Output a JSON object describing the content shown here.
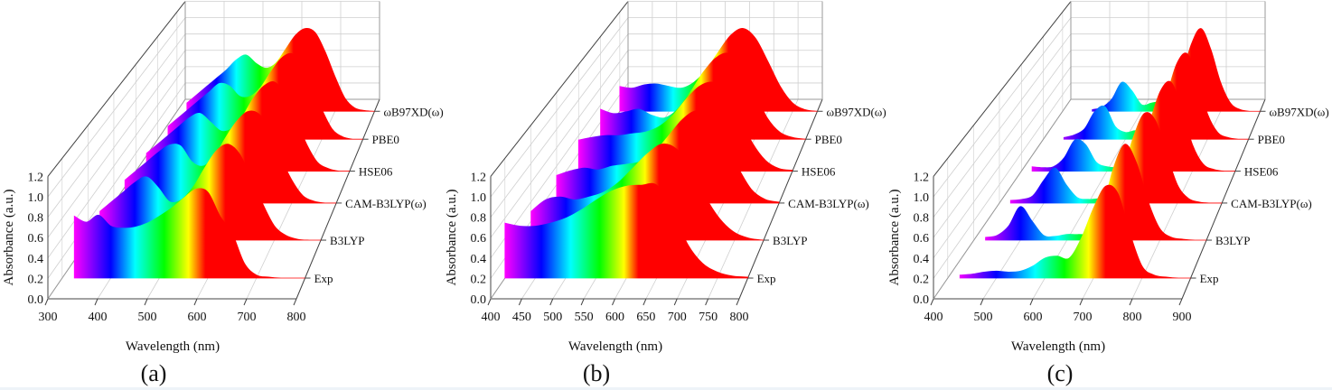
{
  "chart_data": [
    {
      "type": "area",
      "panel_label": "(a)",
      "xlabel": "Wavelength (nm)",
      "ylabel": "Absorbance (a.u.)",
      "xlim": [
        300,
        800
      ],
      "ylim": [
        0,
        1.2
      ],
      "xticks": [
        300,
        400,
        500,
        600,
        700,
        800
      ],
      "yticks": [
        "0.0",
        "0.2",
        "0.4",
        "0.6",
        "0.8",
        "1.0",
        "1.2"
      ],
      "grid": true,
      "colormap": [
        [
          "#ff00ff",
          0.05
        ],
        [
          "#0000ff",
          0.2
        ],
        [
          "#00ffff",
          0.3
        ],
        [
          "#00ff00",
          0.42
        ],
        [
          "#ffff00",
          0.52
        ],
        [
          "#ff0000",
          0.59
        ]
      ],
      "x": [
        325,
        350,
        375,
        400,
        425,
        450,
        475,
        500,
        525,
        550,
        575,
        600,
        625,
        650,
        675,
        700,
        725,
        750,
        775,
        800
      ],
      "series": [
        {
          "name": "Exp",
          "values": [
            0.62,
            0.56,
            0.63,
            0.52,
            0.5,
            0.51,
            0.55,
            0.62,
            0.7,
            0.8,
            0.89,
            0.86,
            0.62,
            0.45,
            0.15,
            0.03,
            0.01,
            0,
            0,
            0
          ]
        },
        {
          "name": "B3LYP",
          "values": [
            0.3,
            0.4,
            0.5,
            0.6,
            0.66,
            0.55,
            0.4,
            0.42,
            0.55,
            0.75,
            0.93,
            1.0,
            0.9,
            0.65,
            0.38,
            0.15,
            0.05,
            0.01,
            0,
            0
          ]
        },
        {
          "name": "CAM-B3LYP(ω)",
          "values": [
            0.25,
            0.35,
            0.45,
            0.55,
            0.63,
            0.62,
            0.45,
            0.4,
            0.5,
            0.7,
            0.88,
            0.99,
            0.97,
            0.8,
            0.5,
            0.25,
            0.08,
            0.02,
            0,
            0
          ]
        },
        {
          "name": "HSE06",
          "values": [
            0.2,
            0.3,
            0.4,
            0.5,
            0.6,
            0.65,
            0.55,
            0.45,
            0.48,
            0.62,
            0.82,
            0.96,
            1.0,
            0.85,
            0.58,
            0.3,
            0.1,
            0.03,
            0,
            0
          ]
        },
        {
          "name": "PBE0",
          "values": [
            0.15,
            0.25,
            0.35,
            0.45,
            0.55,
            0.65,
            0.62,
            0.5,
            0.5,
            0.6,
            0.78,
            0.94,
            1.0,
            0.9,
            0.65,
            0.35,
            0.12,
            0.03,
            0,
            0
          ]
        },
        {
          "name": "ωB97XD(ω)",
          "values": [
            0.1,
            0.2,
            0.3,
            0.4,
            0.5,
            0.62,
            0.68,
            0.58,
            0.52,
            0.58,
            0.75,
            0.92,
            1.0,
            0.95,
            0.72,
            0.42,
            0.16,
            0.04,
            0.01,
            0
          ]
        }
      ]
    },
    {
      "type": "area",
      "panel_label": "(b)",
      "xlabel": "Wavelength (nm)",
      "ylabel": "Absorbance (a.u.)",
      "xlim": [
        400,
        800
      ],
      "ylim": [
        0,
        1.2
      ],
      "xticks": [
        400,
        450,
        500,
        550,
        600,
        650,
        700,
        750,
        800
      ],
      "yticks": [
        "0.0",
        "0.2",
        "0.4",
        "0.6",
        "0.8",
        "1.0",
        "1.2"
      ],
      "grid": true,
      "colormap": [
        [
          "#ff00ff",
          0.0
        ],
        [
          "#0000ff",
          0.15
        ],
        [
          "#00ffff",
          0.27
        ],
        [
          "#00ff00",
          0.39
        ],
        [
          "#ffff00",
          0.49
        ],
        [
          "#ff0000",
          0.55
        ]
      ],
      "x": [
        400,
        425,
        450,
        475,
        500,
        525,
        550,
        575,
        600,
        625,
        650,
        675,
        700,
        725,
        750,
        775,
        800
      ],
      "series": [
        {
          "name": "Exp",
          "values": [
            0.55,
            0.52,
            0.52,
            0.55,
            0.6,
            0.68,
            0.78,
            0.87,
            0.92,
            0.93,
            0.93,
            0.7,
            0.35,
            0.15,
            0.06,
            0.02,
            0.01
          ]
        },
        {
          "name": "B3LYP",
          "values": [
            0.3,
            0.42,
            0.45,
            0.42,
            0.45,
            0.5,
            0.6,
            0.75,
            0.9,
            1.0,
            0.95,
            0.75,
            0.45,
            0.22,
            0.08,
            0.02,
            0
          ]
        },
        {
          "name": "CAM-B3LYP(ω)",
          "values": [
            0.3,
            0.35,
            0.38,
            0.36,
            0.4,
            0.42,
            0.45,
            0.55,
            0.72,
            0.9,
            1.0,
            0.95,
            0.7,
            0.4,
            0.15,
            0.04,
            0.01
          ]
        },
        {
          "name": "HSE06",
          "values": [
            0.35,
            0.38,
            0.4,
            0.4,
            0.42,
            0.44,
            0.5,
            0.62,
            0.8,
            0.95,
            1.0,
            0.9,
            0.62,
            0.32,
            0.12,
            0.03,
            0.01
          ]
        },
        {
          "name": "PBE0",
          "values": [
            0.35,
            0.3,
            0.32,
            0.35,
            0.28,
            0.25,
            0.35,
            0.55,
            0.78,
            0.95,
            1.0,
            0.85,
            0.55,
            0.25,
            0.08,
            0.02,
            0
          ]
        },
        {
          "name": "ωB97XD(ω)",
          "values": [
            0.3,
            0.28,
            0.32,
            0.33,
            0.3,
            0.28,
            0.35,
            0.5,
            0.72,
            0.92,
            1.0,
            0.88,
            0.6,
            0.3,
            0.1,
            0.02,
            0
          ]
        }
      ]
    },
    {
      "type": "area",
      "panel_label": "(c)",
      "xlabel": "Wavelength (nm)",
      "ylabel": "Absorbance (a.u.)",
      "xlim": [
        400,
        900
      ],
      "ylim": [
        0,
        1.2
      ],
      "xticks": [
        400,
        500,
        600,
        700,
        800,
        900
      ],
      "yticks": [
        "0.0",
        "0.2",
        "0.4",
        "0.6",
        "0.8",
        "1.0",
        "1.2"
      ],
      "grid": true,
      "colormap": [
        [
          "#ff00ff",
          0.04
        ],
        [
          "#0000ff",
          0.2
        ],
        [
          "#00ffff",
          0.36
        ],
        [
          "#00ff00",
          0.48
        ],
        [
          "#ffff00",
          0.58
        ],
        [
          "#ff0000",
          0.65
        ]
      ],
      "x": [
        425,
        450,
        475,
        500,
        525,
        550,
        575,
        600,
        625,
        650,
        675,
        700,
        725,
        750,
        775,
        800,
        825,
        850,
        875,
        900
      ],
      "series": [
        {
          "name": "Exp",
          "values": [
            0.03,
            0.04,
            0.06,
            0.07,
            0.06,
            0.07,
            0.12,
            0.2,
            0.22,
            0.2,
            0.4,
            0.7,
            0.92,
            0.85,
            0.45,
            0.12,
            0.03,
            0.01,
            0,
            0
          ]
        },
        {
          "name": "B3LYP",
          "values": [
            0.03,
            0.05,
            0.15,
            0.35,
            0.2,
            0.05,
            0.04,
            0.06,
            0.06,
            0.08,
            0.3,
            0.75,
            1.0,
            0.8,
            0.4,
            0.12,
            0.03,
            0.01,
            0,
            0
          ]
        },
        {
          "name": "CAM-B3LYP(ω)",
          "values": [
            0.03,
            0.04,
            0.08,
            0.25,
            0.38,
            0.2,
            0.06,
            0.04,
            0.05,
            0.08,
            0.3,
            0.7,
            0.97,
            0.9,
            0.55,
            0.2,
            0.05,
            0.01,
            0,
            0
          ]
        },
        {
          "name": "HSE06",
          "values": [
            0.05,
            0.04,
            0.05,
            0.15,
            0.35,
            0.3,
            0.1,
            0.05,
            0.04,
            0.06,
            0.2,
            0.55,
            0.9,
            1.0,
            0.7,
            0.3,
            0.08,
            0.02,
            0,
            0
          ]
        },
        {
          "name": "PBE0",
          "values": [
            null,
            0.02,
            0.05,
            0.12,
            0.32,
            0.38,
            0.15,
            0.08,
            0.1,
            0.07,
            0.15,
            0.5,
            0.88,
            1.0,
            0.72,
            0.3,
            0.08,
            0.02,
            0,
            0
          ]
        },
        {
          "name": "ωB97XD(ω)",
          "values": [
            null,
            null,
            0.02,
            0.05,
            0.15,
            0.35,
            0.25,
            0.08,
            0.1,
            0.12,
            0.12,
            0.4,
            0.8,
            1.0,
            0.75,
            0.35,
            0.1,
            0.02,
            0,
            0
          ]
        }
      ]
    }
  ]
}
